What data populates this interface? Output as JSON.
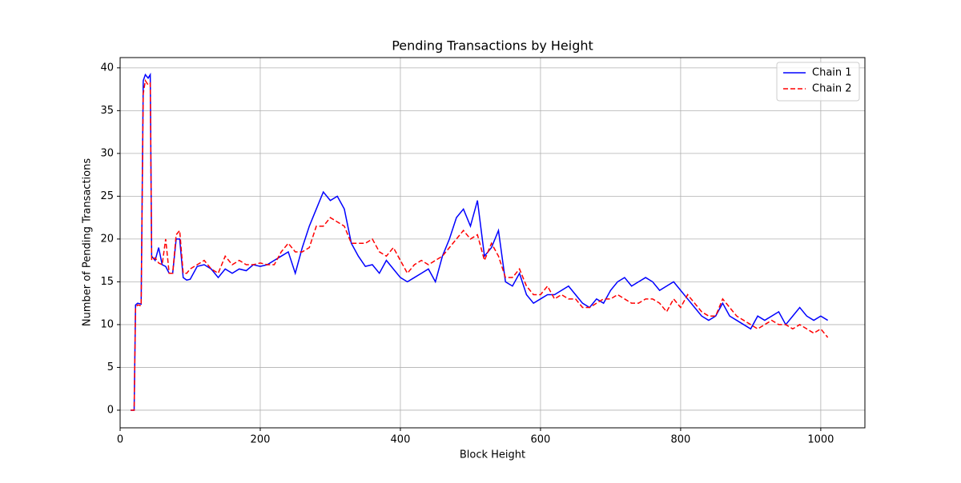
{
  "chart_data": {
    "type": "line",
    "title": "Pending Transactions by Height",
    "xlabel": "Block Height",
    "ylabel": "Number of Pending Transactions",
    "x": [
      15,
      20,
      22,
      25,
      30,
      33,
      36,
      40,
      43,
      45,
      50,
      55,
      60,
      65,
      70,
      75,
      80,
      85,
      90,
      95,
      100,
      110,
      120,
      130,
      140,
      150,
      160,
      170,
      180,
      190,
      200,
      210,
      220,
      230,
      240,
      250,
      260,
      270,
      280,
      290,
      300,
      310,
      320,
      330,
      340,
      350,
      360,
      370,
      380,
      390,
      400,
      410,
      420,
      430,
      440,
      450,
      460,
      470,
      480,
      490,
      500,
      510,
      520,
      530,
      540,
      550,
      560,
      570,
      580,
      590,
      600,
      610,
      620,
      630,
      640,
      650,
      660,
      670,
      680,
      690,
      700,
      710,
      720,
      730,
      740,
      750,
      760,
      770,
      780,
      790,
      800,
      810,
      820,
      830,
      840,
      850,
      860,
      870,
      880,
      890,
      900,
      910,
      920,
      930,
      940,
      950,
      960,
      970,
      980,
      990,
      1000,
      1010
    ],
    "series": [
      {
        "name": "Chain 1",
        "color": "#0000ff",
        "dash": false,
        "values": [
          0,
          0,
          12.3,
          12.5,
          12.4,
          38.5,
          39.2,
          38.8,
          39.2,
          18,
          17.5,
          19,
          17,
          16.8,
          16,
          16,
          20,
          20,
          15.5,
          15.2,
          15.3,
          16.8,
          17,
          16.5,
          15.5,
          16.5,
          16,
          16.5,
          16.3,
          17,
          16.8,
          17,
          17.5,
          18,
          18.5,
          16,
          19,
          21.5,
          23.5,
          25.5,
          24.5,
          25,
          23.5,
          19.5,
          18,
          16.8,
          17,
          16,
          17.5,
          16.5,
          15.5,
          15,
          15.5,
          16,
          16.5,
          15,
          18,
          20,
          22.5,
          23.5,
          21.5,
          24.5,
          18,
          19,
          21,
          15,
          14.5,
          16,
          13.5,
          12.5,
          13,
          13.5,
          13.5,
          14,
          14.5,
          13.5,
          12.5,
          12,
          13,
          12.5,
          14,
          15,
          15.5,
          14.5,
          15,
          15.5,
          15,
          14,
          14.5,
          15,
          14,
          13,
          12,
          11,
          10.5,
          11,
          12.5,
          11,
          10.5,
          10,
          9.5,
          11,
          10.5,
          11,
          11.5,
          10,
          11,
          12,
          11,
          10.5,
          11,
          10.5
        ]
      },
      {
        "name": "Chain 2",
        "color": "#ff0000",
        "dash": true,
        "values": [
          0,
          0,
          12,
          12.3,
          12.2,
          37,
          38.5,
          38,
          38.2,
          17.5,
          17.8,
          17.2,
          17,
          20,
          16,
          16,
          20.5,
          21,
          16,
          16,
          16.5,
          17,
          17.5,
          16.5,
          16,
          18,
          17,
          17.5,
          17,
          17,
          17.2,
          17,
          17,
          18.5,
          19.5,
          18.5,
          18.5,
          19,
          21.5,
          21.5,
          22.5,
          22,
          21.5,
          19.5,
          19.5,
          19.5,
          20,
          18.5,
          18,
          19,
          17.5,
          16,
          17,
          17.5,
          17,
          17.5,
          18,
          19,
          20,
          21,
          20,
          20.5,
          17.5,
          19.5,
          18,
          15.5,
          15.5,
          16.5,
          14.5,
          13.5,
          13.5,
          14.5,
          13,
          13.5,
          13,
          13,
          12,
          12,
          12.5,
          13,
          13,
          13.5,
          13,
          12.5,
          12.5,
          13,
          13,
          12.5,
          11.5,
          13,
          12,
          13.5,
          12.5,
          11.5,
          11,
          11,
          13,
          12,
          11,
          10.5,
          10,
          9.5,
          10,
          10.5,
          10,
          10,
          9.5,
          10,
          9.5,
          9,
          9.5,
          8.5
        ]
      }
    ],
    "xlim": [
      0,
      1063
    ],
    "ylim": [
      -2.06,
      41.2
    ],
    "xticks": [
      0,
      200,
      400,
      600,
      800,
      1000
    ],
    "yticks": [
      0,
      5,
      10,
      15,
      20,
      25,
      30,
      35,
      40
    ],
    "grid": true,
    "legend": "upper right"
  }
}
